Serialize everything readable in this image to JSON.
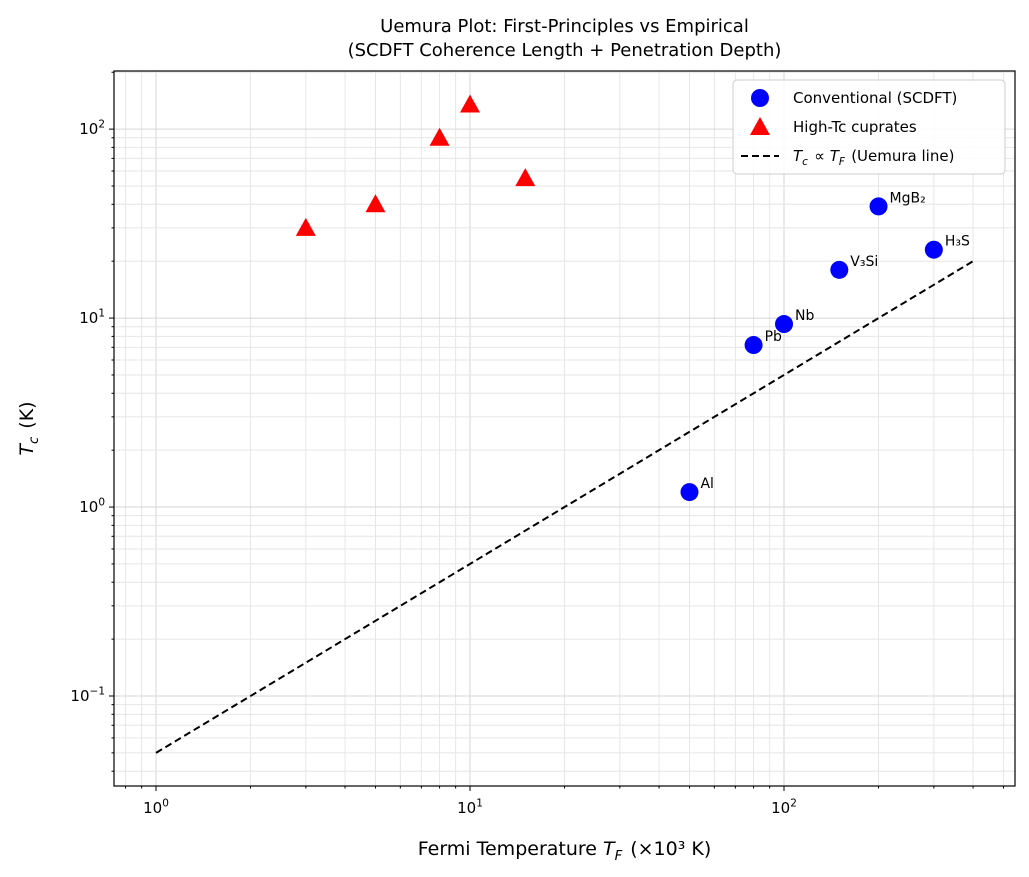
{
  "chart_data": {
    "type": "scatter",
    "title": [
      "Uemura Plot: First-Principles vs Empirical",
      "(SCDFT Coherence Length + Penetration Depth)"
    ],
    "xlabel": "Fermi Temperature T_F (×10³ K)",
    "ylabel": "T_c (K)",
    "xscale": "log",
    "yscale": "log",
    "xlim": [
      0.735,
      544
    ],
    "ylim": [
      0.0334,
      203
    ],
    "grid": true,
    "legend_position": "top-right",
    "x_ticks": [
      {
        "v": 1,
        "label": "10^0"
      },
      {
        "v": 10,
        "label": "10^1"
      },
      {
        "v": 100,
        "label": "10^2"
      }
    ],
    "y_ticks": [
      {
        "v": 0.1,
        "label": "10^-1"
      },
      {
        "v": 1,
        "label": "10^0"
      },
      {
        "v": 10,
        "label": "10^1"
      },
      {
        "v": 100,
        "label": "10^2"
      }
    ],
    "series": [
      {
        "name": "Conventional (SCDFT)",
        "marker": "circle",
        "color": "#0000ff",
        "points": [
          {
            "x": 50,
            "y": 1.2,
            "label": "Al"
          },
          {
            "x": 80,
            "y": 7.2,
            "label": "Pb"
          },
          {
            "x": 100,
            "y": 9.3,
            "label": "Nb"
          },
          {
            "x": 150,
            "y": 18,
            "label": "V₃Si"
          },
          {
            "x": 200,
            "y": 39,
            "label": "MgB₂"
          },
          {
            "x": 300,
            "y": 23,
            "label": "H₃S"
          }
        ]
      },
      {
        "name": "High-Tc cuprates",
        "marker": "triangle",
        "color": "#ff0000",
        "points": [
          {
            "x": 3,
            "y": 30
          },
          {
            "x": 5,
            "y": 40
          },
          {
            "x": 8,
            "y": 90
          },
          {
            "x": 10,
            "y": 135
          },
          {
            "x": 15,
            "y": 55
          }
        ]
      },
      {
        "name": "T_c ∝ T_F (Uemura line)",
        "marker": "dashed-line",
        "color": "#000000",
        "points": [
          {
            "x": 1,
            "y": 0.05
          },
          {
            "x": 400,
            "y": 20
          }
        ]
      }
    ]
  }
}
